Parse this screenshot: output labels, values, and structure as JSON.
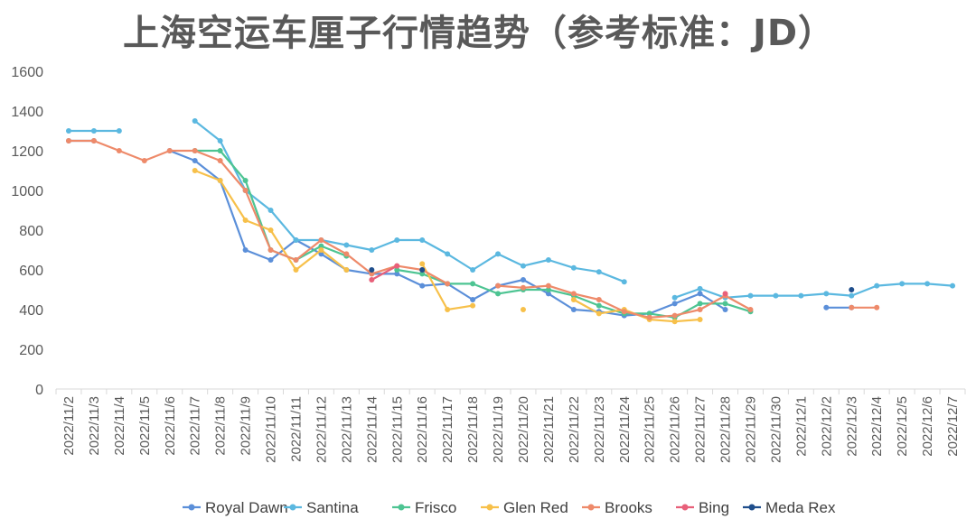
{
  "chart_data": {
    "type": "line",
    "title": "上海空运车厘子行情趋势（参考标准：JD）",
    "ylim": [
      0,
      1600
    ],
    "yticks": [
      0,
      200,
      400,
      600,
      800,
      1000,
      1200,
      1400,
      1600
    ],
    "legend_position": "bottom",
    "grid": false,
    "categories": [
      "2022/11/2",
      "2022/11/3",
      "2022/11/4",
      "2022/11/5",
      "2022/11/6",
      "2022/11/7",
      "2022/11/8",
      "2022/11/9",
      "2022/11/10",
      "2022/11/11",
      "2022/11/12",
      "2022/11/13",
      "2022/11/14",
      "2022/11/15",
      "2022/11/16",
      "2022/11/17",
      "2022/11/18",
      "2022/11/19",
      "2022/11/20",
      "2022/11/21",
      "2022/11/22",
      "2022/11/23",
      "2022/11/24",
      "2022/11/25",
      "2022/11/26",
      "2022/11/27",
      "2022/11/28",
      "2022/11/29",
      "2022/11/30",
      "2022/12/1",
      "2022/12/2",
      "2022/12/3",
      "2022/12/4",
      "2022/12/5",
      "2022/12/6",
      "2022/12/7"
    ],
    "series": [
      {
        "name": "Royal Dawn",
        "color": "#5b8fd9",
        "values": [
          1250,
          1250,
          null,
          null,
          1200,
          1150,
          1050,
          700,
          650,
          750,
          680,
          600,
          580,
          580,
          520,
          530,
          450,
          520,
          550,
          480,
          400,
          390,
          370,
          380,
          430,
          480,
          400,
          null,
          null,
          null,
          410,
          410,
          null,
          null,
          null,
          null
        ]
      },
      {
        "name": "Santina",
        "color": "#5bb8e0",
        "values": [
          1300,
          1300,
          1300,
          null,
          null,
          1350,
          1250,
          1000,
          900,
          750,
          750,
          725,
          700,
          750,
          750,
          680,
          600,
          680,
          620,
          650,
          610,
          590,
          540,
          null,
          460,
          505,
          460,
          470,
          470,
          470,
          480,
          470,
          520,
          530,
          530,
          520
        ]
      },
      {
        "name": "Frisco",
        "color": "#4dc492",
        "values": [
          null,
          null,
          null,
          null,
          null,
          1200,
          1200,
          1050,
          700,
          650,
          720,
          670,
          null,
          600,
          580,
          530,
          530,
          480,
          500,
          500,
          470,
          420,
          380,
          380,
          360,
          430,
          430,
          390,
          null,
          null,
          null,
          null,
          null,
          null,
          null,
          null
        ]
      },
      {
        "name": "Glen Red",
        "color": "#f7c04a",
        "values": [
          null,
          null,
          null,
          null,
          null,
          1100,
          1050,
          850,
          800,
          600,
          700,
          600,
          null,
          null,
          630,
          400,
          420,
          null,
          400,
          null,
          450,
          380,
          400,
          350,
          340,
          350,
          null,
          null,
          null,
          null,
          null,
          null,
          null,
          null,
          null,
          null
        ]
      },
      {
        "name": "Brooks",
        "color": "#ee8a6a",
        "values": [
          1250,
          1250,
          1200,
          1150,
          1200,
          1200,
          1150,
          1000,
          700,
          650,
          750,
          680,
          580,
          620,
          600,
          530,
          null,
          520,
          510,
          520,
          480,
          450,
          390,
          360,
          370,
          400,
          470,
          400,
          null,
          null,
          null,
          410,
          410,
          null,
          null,
          null
        ]
      },
      {
        "name": "Bing",
        "color": "#e8607a",
        "values": [
          null,
          null,
          null,
          null,
          null,
          null,
          null,
          null,
          null,
          null,
          null,
          null,
          550,
          620,
          null,
          null,
          null,
          null,
          null,
          null,
          null,
          null,
          null,
          null,
          null,
          null,
          480,
          null,
          null,
          null,
          null,
          null,
          null,
          null,
          null,
          null
        ]
      },
      {
        "name": "Meda Rex",
        "color": "#1f4e8c",
        "values": [
          null,
          null,
          null,
          null,
          null,
          null,
          null,
          null,
          null,
          null,
          null,
          null,
          600,
          null,
          600,
          null,
          null,
          null,
          null,
          null,
          null,
          null,
          null,
          null,
          null,
          null,
          null,
          null,
          null,
          null,
          null,
          500,
          null,
          null,
          null,
          null
        ]
      }
    ]
  }
}
